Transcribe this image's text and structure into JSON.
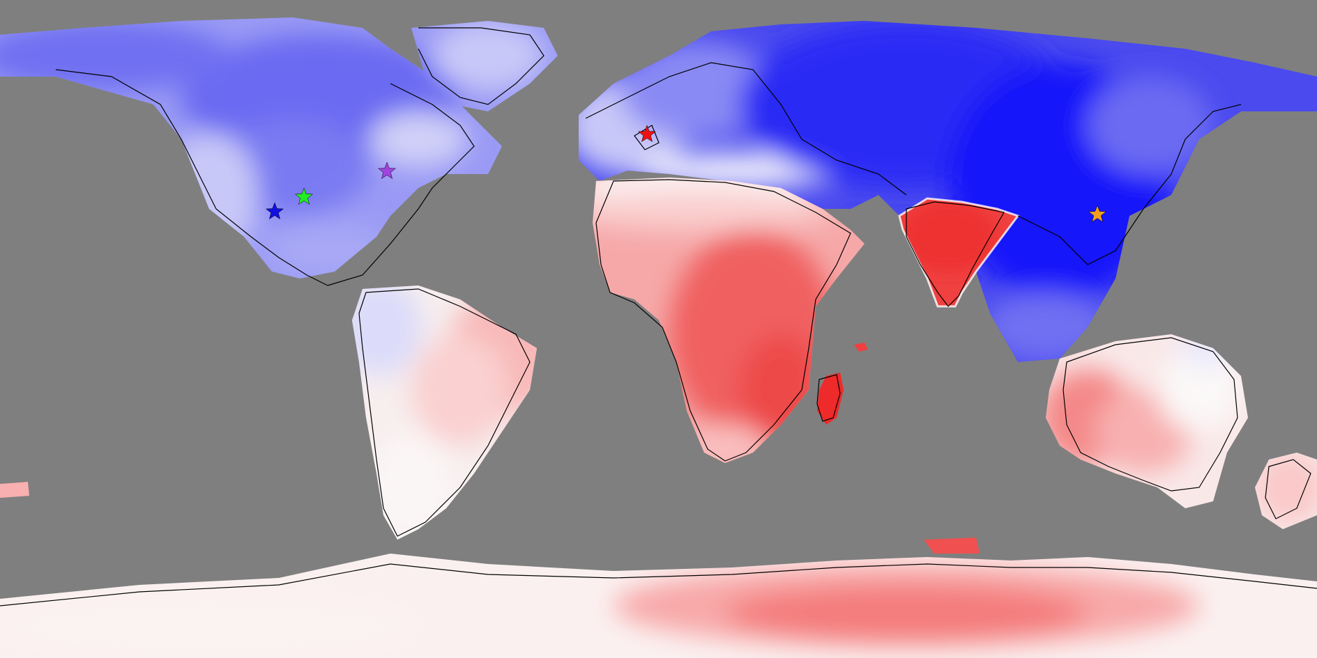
{
  "map": {
    "projection": "equirectangular",
    "colors": {
      "ocean": "#7f7f7f",
      "coastline": "#000000",
      "strong_blue": "#1a1aff",
      "mid_blue": "#5a5af2",
      "light_blue": "#9a9af5",
      "pale_blue": "#dcdcfa",
      "white": "#fbf8f8",
      "pale_red": "#fcd8d8",
      "light_red": "#f8a8a8",
      "mid_red": "#f37878",
      "strong_red": "#f03a3a"
    },
    "markers": [
      {
        "name": "star-marker-western-us",
        "shape": "star-icon",
        "color": "#1010e0"
      },
      {
        "name": "star-marker-central-us",
        "shape": "star-icon",
        "color": "#22ee22"
      },
      {
        "name": "star-marker-eastern-us",
        "shape": "star-icon",
        "color": "#a044e0"
      },
      {
        "name": "star-marker-uk",
        "shape": "star-icon",
        "color": "#ee1111"
      },
      {
        "name": "star-marker-china",
        "shape": "star-icon",
        "color": "#f0a020"
      }
    ]
  }
}
